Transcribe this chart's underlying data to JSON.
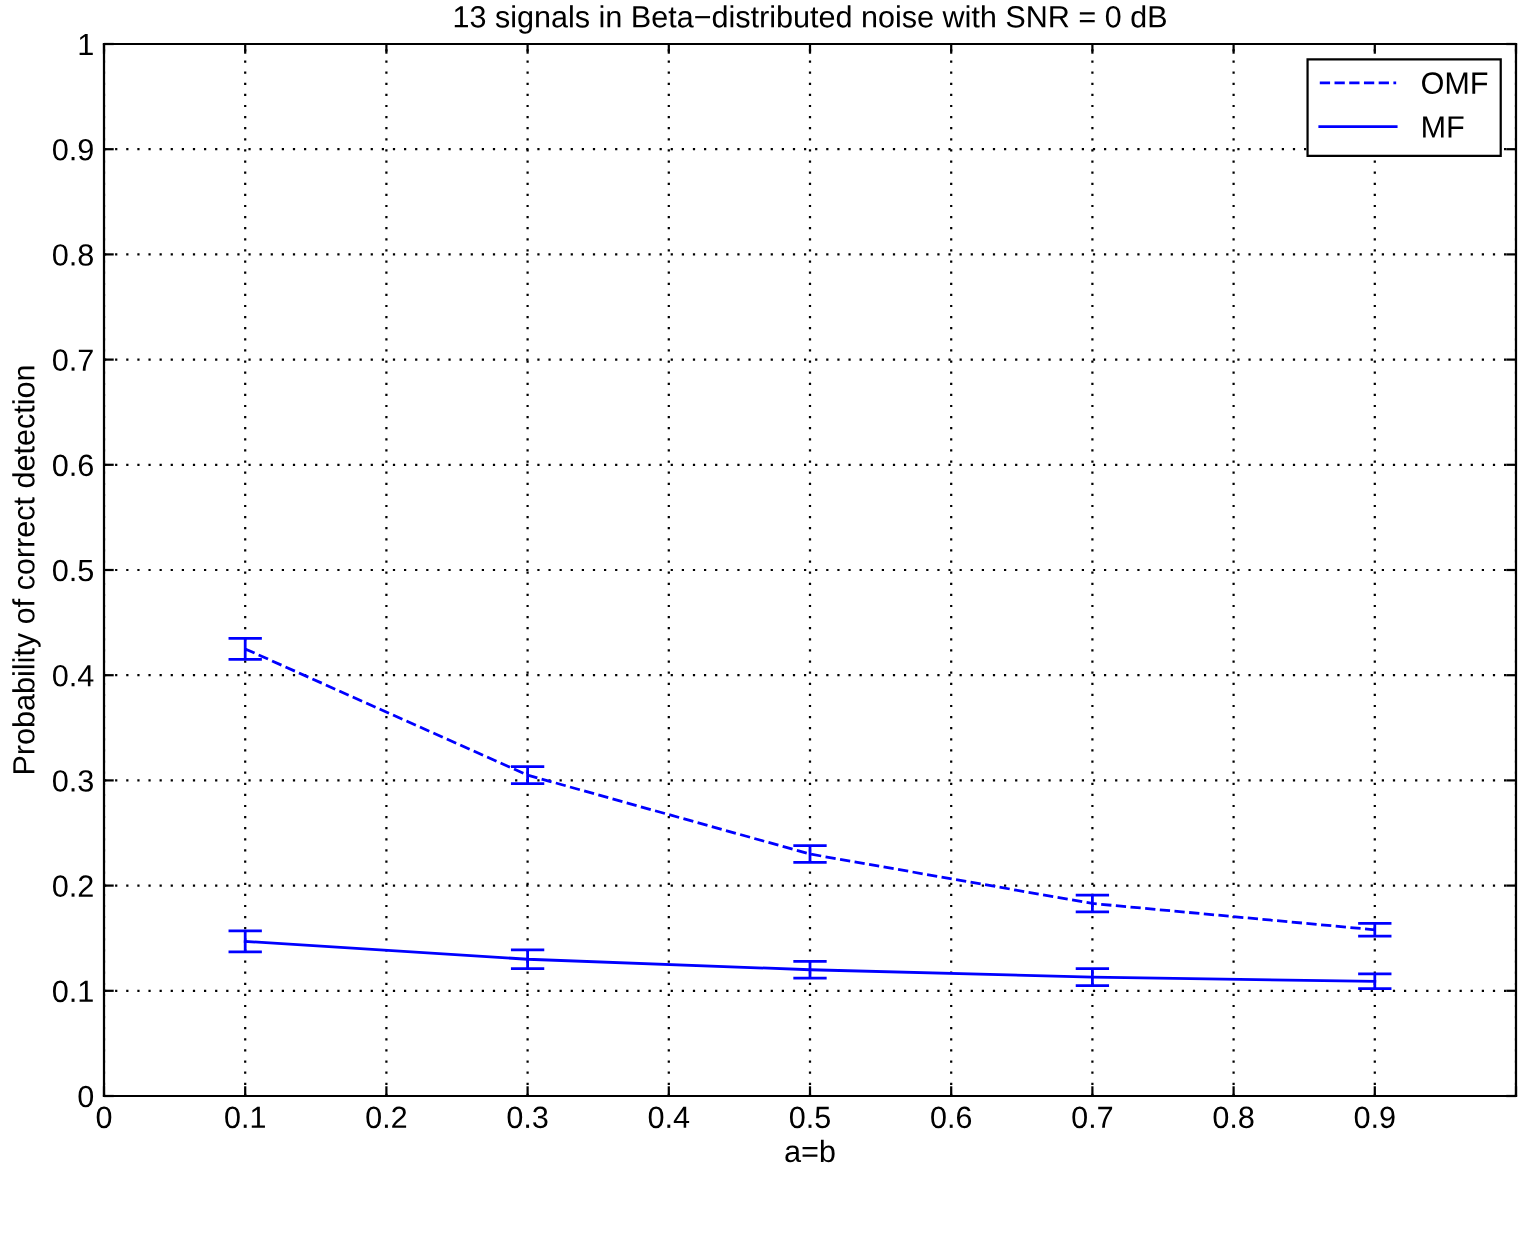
{
  "chart_data": {
    "type": "line",
    "title": "13 signals in Beta−distributed noise with SNR = 0 dB",
    "xlabel": "a=b",
    "ylabel": "Probability of correct detection",
    "x": [
      0.1,
      0.3,
      0.5,
      0.7,
      0.9
    ],
    "series": [
      {
        "name": "OMF",
        "color": "#0000ff",
        "line_style": "dashed",
        "values": [
          0.425,
          0.305,
          0.23,
          0.183,
          0.158
        ],
        "errors": [
          0.01,
          0.008,
          0.008,
          0.008,
          0.006
        ]
      },
      {
        "name": "MF",
        "color": "#0000ff",
        "line_style": "solid",
        "values": [
          0.147,
          0.13,
          0.12,
          0.113,
          0.109
        ],
        "errors": [
          0.01,
          0.009,
          0.008,
          0.008,
          0.007
        ]
      }
    ],
    "xlim": [
      0,
      1
    ],
    "ylim": [
      0,
      1
    ],
    "xticks": [
      0,
      0.1,
      0.2,
      0.3,
      0.4,
      0.5,
      0.6,
      0.7,
      0.8,
      0.9,
      {
        "value": 1,
        "label": null
      }
    ],
    "yticks": [
      0,
      0.1,
      0.2,
      0.3,
      0.4,
      0.5,
      0.6,
      0.7,
      0.8,
      0.9,
      1
    ],
    "grid": true,
    "legend": "top right",
    "marker": "none"
  }
}
